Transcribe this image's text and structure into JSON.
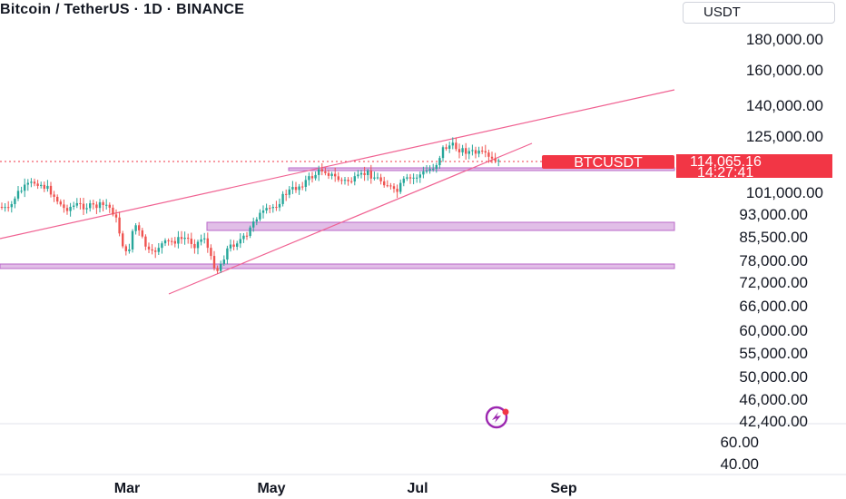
{
  "header": {
    "title": "Bitcoin / TetherUS · 1D · BINANCE",
    "currency": "USDT"
  },
  "colors": {
    "up": "#26a69a",
    "down": "#ef5350",
    "trendline": "#f06292",
    "zone_fill": "#e1bee7",
    "zone_stroke": "#ba68c8",
    "tag": "#f23645"
  },
  "price_axis": {
    "labels": [
      "180,000.00",
      "160,000.00",
      "140,000.00",
      "125,000.00",
      "101,000.00",
      "93,000.00",
      "85,500.00",
      "78,000.00",
      "72,000.00",
      "66,000.00",
      "60,000.00",
      "55,000.00",
      "50,000.00",
      "46,000.00",
      "42,400.00"
    ]
  },
  "indicator_axis": {
    "labels": [
      "60.00",
      "40.00"
    ]
  },
  "time_axis": {
    "labels": [
      "Mar",
      "May",
      "Jul",
      "Sep"
    ]
  },
  "symbol_tag": {
    "symbol": "BTCUSDT",
    "price": "114,065.16",
    "countdown": "14:27:41"
  },
  "watermark_icon": "tradingview-logo-icon"
}
